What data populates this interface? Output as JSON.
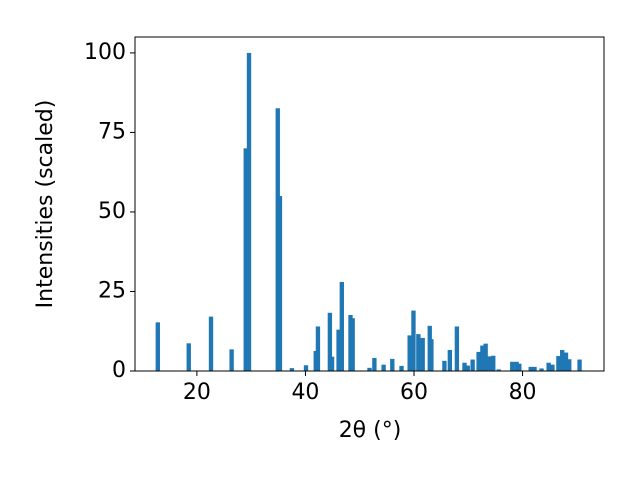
{
  "chart_data": {
    "type": "bar",
    "xlabel": "2θ (°)",
    "ylabel": "Intensities (scaled)",
    "color": "#1f77b4",
    "x": [
      12.8,
      18.5,
      22.6,
      26.4,
      29.0,
      29.6,
      34.9,
      35.3,
      37.5,
      40.1,
      41.9,
      42.3,
      44.5,
      44.9,
      46.1,
      46.7,
      48.3,
      48.7,
      51.8,
      52.7,
      54.4,
      56.0,
      57.7,
      59.2,
      59.9,
      60.8,
      61.6,
      62.9,
      63.2,
      65.6,
      66.6,
      67.9,
      69.3,
      69.9,
      70.8,
      71.9,
      72.6,
      73.2,
      73.9,
      74.6,
      75.6,
      78.1,
      78.9,
      79.4,
      81.5,
      82.2,
      83.5,
      84.8,
      85.5,
      86.6,
      87.3,
      88.0,
      88.6,
      90.5
    ],
    "values": [
      15.3,
      8.7,
      17.1,
      6.8,
      70,
      100,
      82.6,
      55,
      0.9,
      1.8,
      6.3,
      14,
      18.3,
      4.5,
      13,
      28,
      17.6,
      16.6,
      1,
      4.1,
      2,
      3.8,
      1.6,
      11.2,
      19,
      11.6,
      10.4,
      14.2,
      10,
      3.2,
      6.6,
      14,
      2.6,
      1.7,
      3.6,
      6,
      8,
      8.6,
      4.6,
      4.8,
      0.5,
      2.9,
      2.9,
      2.3,
      1.3,
      1.3,
      0.8,
      2.6,
      2,
      4.7,
      6.6,
      5.8,
      3.7,
      3.6
    ],
    "xlim": [
      8.6,
      95.0
    ],
    "ylim": [
      0,
      105
    ],
    "xticks": [
      20,
      40,
      60,
      80
    ],
    "yticks": [
      0,
      25,
      50,
      75,
      100
    ]
  }
}
